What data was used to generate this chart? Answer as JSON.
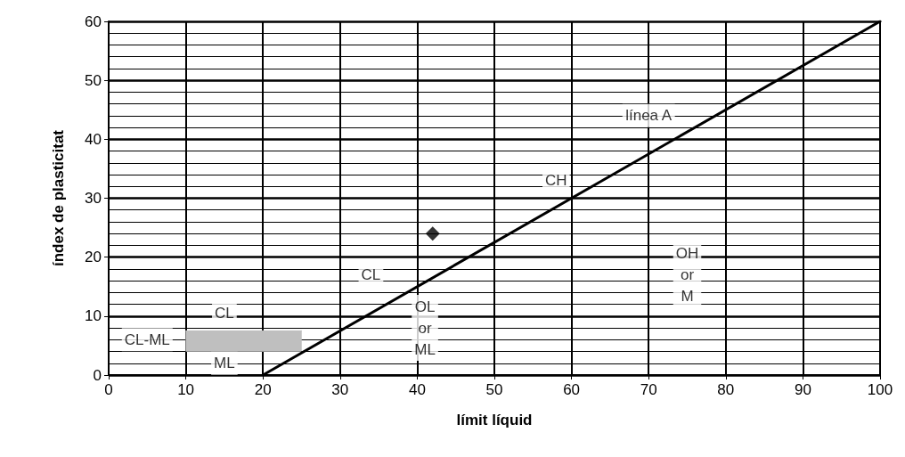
{
  "chart_data": {
    "type": "scatter",
    "xlabel": "límit líquid",
    "ylabel": "índex de plasticitat",
    "xlim": [
      0,
      100
    ],
    "xticks": [
      0,
      10,
      20,
      30,
      40,
      50,
      60,
      70,
      80,
      90,
      100
    ],
    "ylim": [
      0,
      60
    ],
    "yticks": [
      0,
      10,
      20,
      30,
      40,
      50,
      60
    ],
    "grid": true,
    "series": [
      {
        "type": "line",
        "color": "#bfbfbf",
        "x": [
          10,
          25
        ],
        "values": [
          7.5,
          7.5
        ],
        "lower": [
          4,
          4
        ],
        "upper": [
          7.5,
          7.5
        ],
        "marker": "none"
      },
      {
        "type": "line",
        "color": "#000000",
        "x": [
          20,
          100
        ],
        "values": [
          0,
          60
        ],
        "marker": "none",
        "line_style": "solid"
      },
      {
        "type": "scatter",
        "color": "#000000",
        "x": [
          42
        ],
        "values": [
          24
        ],
        "marker": "diamond"
      }
    ],
    "annotations": [
      "CL",
      "CL-ML",
      "ML",
      "CL",
      "OL\nor\nML",
      "CH",
      "línea A",
      "OH\nor\nM"
    ]
  }
}
